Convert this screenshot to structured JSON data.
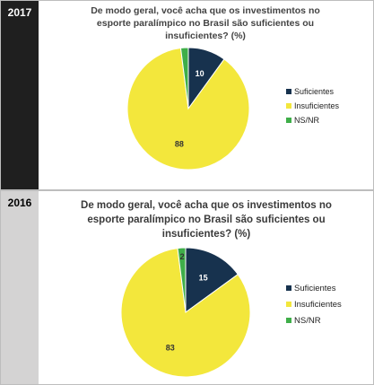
{
  "colors": {
    "suficientes": "#17324e",
    "insuficientes": "#f3e73c",
    "nsnr": "#3fae49"
  },
  "chart_data": [
    {
      "type": "pie",
      "year": "2017",
      "title_lines": [
        "De modo geral, você acha que os investimentos no",
        "esporte paralímpico no Brasil são suficientes ou",
        "insuficientes? (%)"
      ],
      "categories": [
        "Suficientes",
        "Insuficientes",
        "NS/NR"
      ],
      "values": [
        10,
        88,
        2
      ],
      "data_labels": [
        "10",
        "88",
        ""
      ],
      "legend": [
        "Suficientes",
        "Insuficientes",
        "NS/NR"
      ],
      "legend_position": "right"
    },
    {
      "type": "pie",
      "year": "2016",
      "title_lines": [
        "De modo geral, você acha que os investimentos no",
        "esporte paralímpico no Brasil são suficientes ou",
        "insuficientes? (%)"
      ],
      "categories": [
        "Suficientes",
        "Insuficientes",
        "NS/NR"
      ],
      "values": [
        15,
        83,
        2
      ],
      "data_labels": [
        "15",
        "83",
        "2"
      ],
      "legend": [
        "Suficientes",
        "Insuficientes",
        "NS/NR"
      ],
      "legend_position": "right"
    }
  ]
}
